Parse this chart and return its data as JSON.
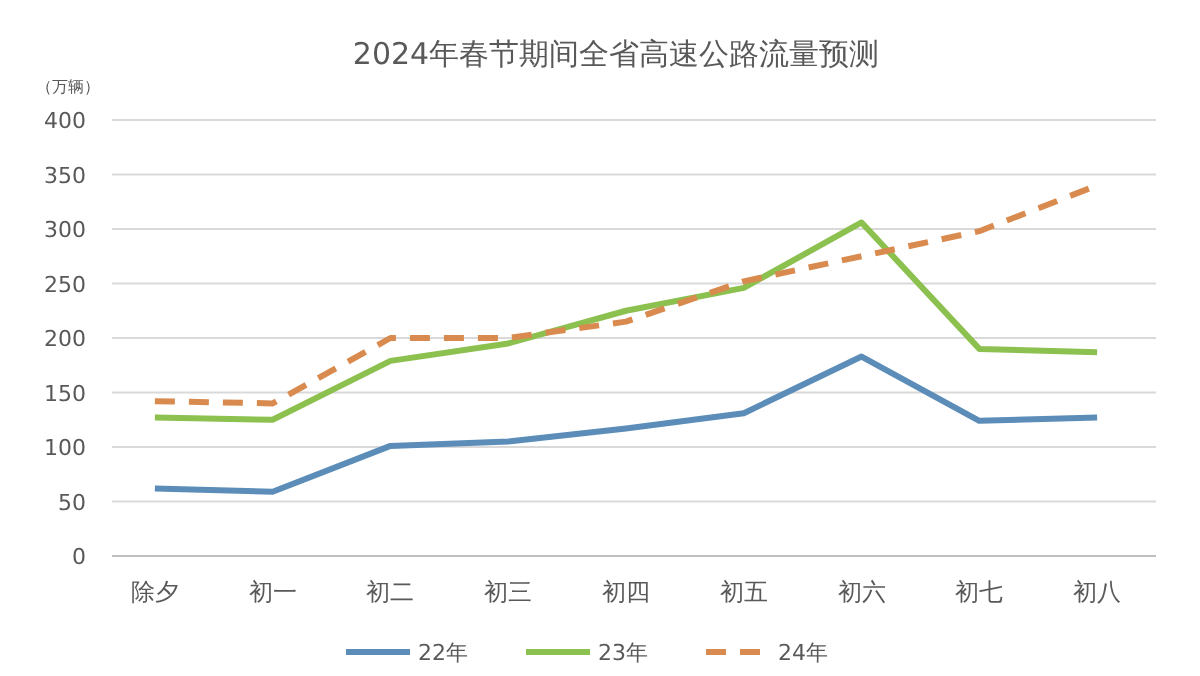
{
  "chart_data": {
    "type": "line",
    "title": "2024年春节期间全省高速公路流量预测",
    "ylabel": "（万辆）",
    "categories": [
      "除夕",
      "初一",
      "初二",
      "初三",
      "初四",
      "初五",
      "初六",
      "初七",
      "初八"
    ],
    "series": [
      {
        "name": "22年",
        "color": "#5b8db8",
        "values": [
          62,
          59,
          101,
          105,
          117,
          131,
          183,
          124,
          127
        ]
      },
      {
        "name": "23年",
        "color": "#8cc04f",
        "values": [
          127,
          125,
          179,
          195,
          225,
          246,
          306,
          190,
          187
        ]
      },
      {
        "name": "24年",
        "color": "#d98b4f",
        "values": [
          142,
          140,
          200,
          200,
          215,
          252,
          275,
          298,
          340
        ],
        "line_style": "dashed"
      }
    ],
    "ylim": [
      0,
      400
    ],
    "yticks": [
      0,
      50,
      100,
      150,
      200,
      250,
      300,
      350,
      400
    ],
    "grid": "y",
    "legend": "bottom",
    "marker": "none"
  }
}
